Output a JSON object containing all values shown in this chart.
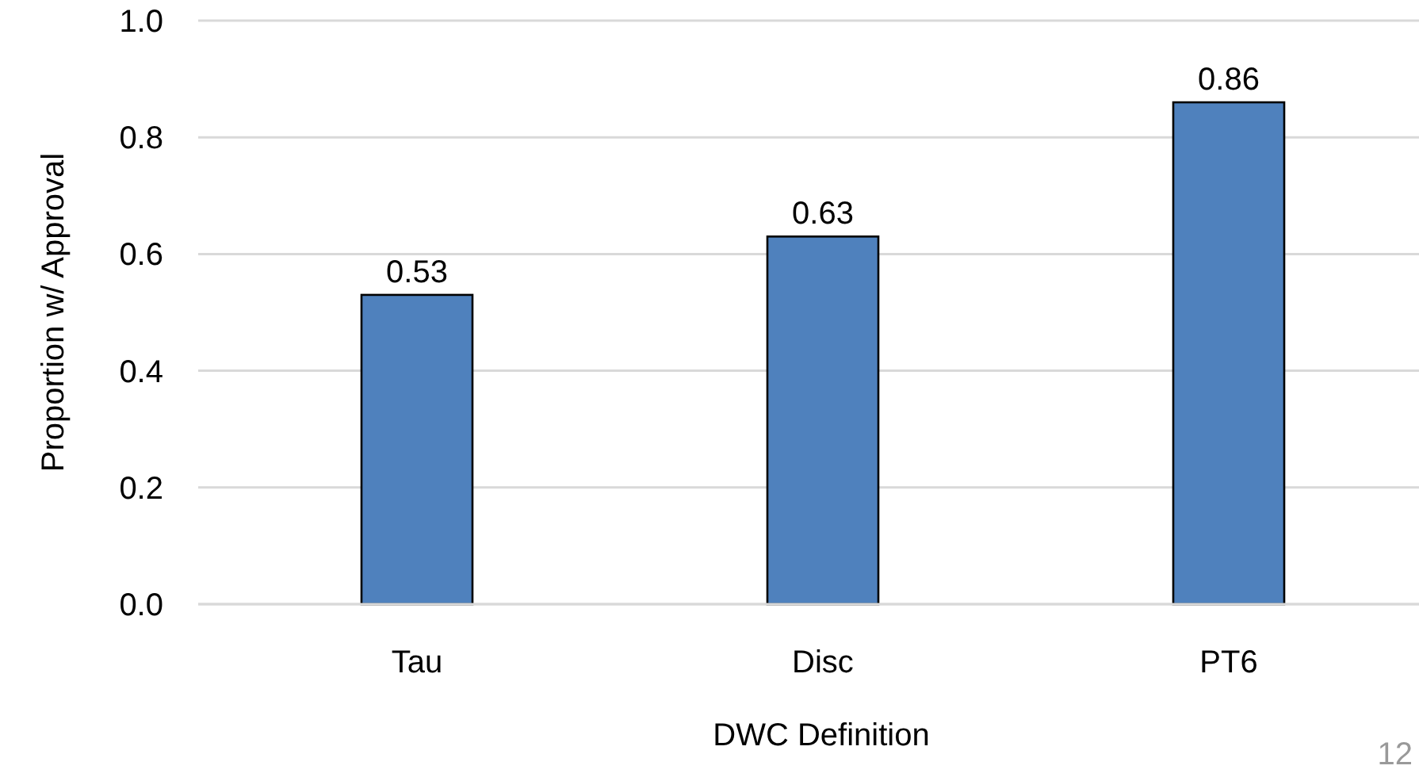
{
  "chart_data": {
    "type": "bar",
    "categories": [
      "Tau",
      "Disc",
      "PT6"
    ],
    "values": [
      0.53,
      0.63,
      0.86
    ],
    "color": "#4f81bd",
    "ylim": [
      0,
      1
    ],
    "yticks": [
      {
        "value": 0,
        "label": "0.0"
      },
      {
        "value": 0.2,
        "label": "0.2"
      },
      {
        "value": 0.4,
        "label": "0.4"
      },
      {
        "value": 0.6,
        "label": "0.6"
      },
      {
        "value": 0.8,
        "label": "0.8"
      },
      {
        "value": 1,
        "label": "1.0"
      }
    ],
    "grid": "y",
    "data_labels": true,
    "xlabel": "DWC Definition",
    "ylabel": "Proportion w/ Approval",
    "annotations": [
      "12"
    ]
  }
}
